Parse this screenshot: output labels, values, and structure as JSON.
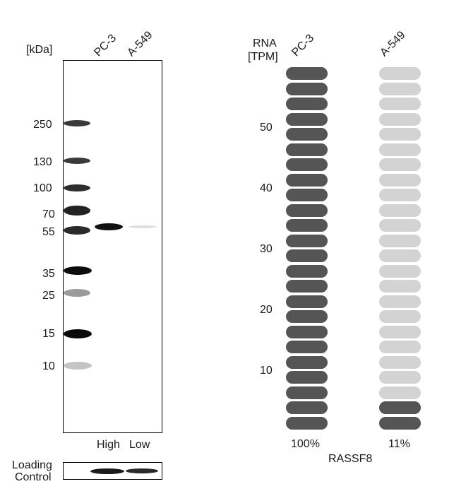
{
  "western_blot": {
    "unit_label": "[kDa]",
    "lanes": [
      "PC-3",
      "A-549"
    ],
    "markers": [
      "250",
      "130",
      "100",
      "70",
      "55",
      "35",
      "25",
      "15",
      "10"
    ],
    "expression_labels": [
      "High",
      "Low"
    ],
    "loading_control_label": [
      "Loading",
      "Control"
    ]
  },
  "rna": {
    "axis_title": [
      "RNA",
      "[TPM]"
    ],
    "cell_lines": [
      "PC-3",
      "A-549"
    ],
    "y_ticks": [
      "50",
      "40",
      "30",
      "20",
      "10"
    ],
    "percentages": [
      "100%",
      "11%"
    ],
    "gene": "RASSF8",
    "total_segments": 24,
    "filled_segments": [
      24,
      2
    ],
    "colors": {
      "filled": "#555555",
      "empty": "#d3d3d3"
    }
  }
}
